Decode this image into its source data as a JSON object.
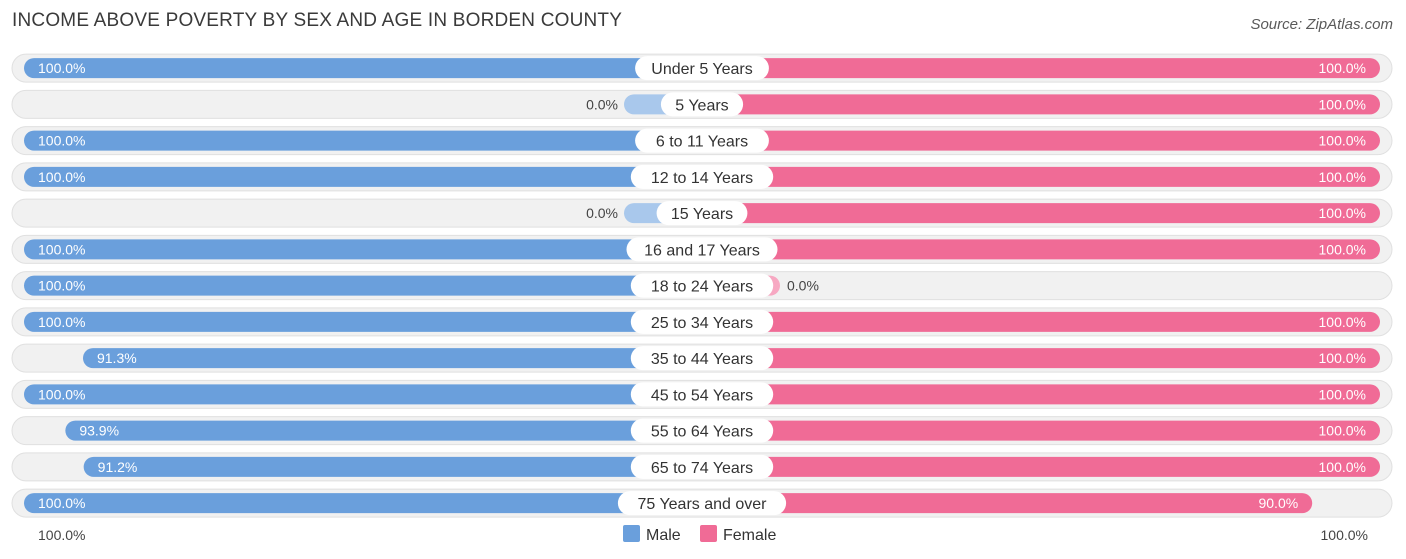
{
  "chart_data": {
    "type": "bar",
    "orientation": "horizontal-diverging",
    "title": "INCOME ABOVE POVERTY BY SEX AND AGE IN BORDEN COUNTY",
    "source": "Source: ZipAtlas.com",
    "categories": [
      "Under 5 Years",
      "5 Years",
      "6 to 11 Years",
      "12 to 14 Years",
      "15 Years",
      "16 and 17 Years",
      "18 to 24 Years",
      "25 to 34 Years",
      "35 to 44 Years",
      "45 to 54 Years",
      "55 to 64 Years",
      "65 to 74 Years",
      "75 Years and over"
    ],
    "series": [
      {
        "name": "Male",
        "color": "#6a9fdc",
        "color_zero": "#a9c8ec",
        "values": [
          100.0,
          0.0,
          100.0,
          100.0,
          0.0,
          100.0,
          100.0,
          100.0,
          91.3,
          100.0,
          93.9,
          91.2,
          100.0
        ],
        "labels": [
          "100.0%",
          "0.0%",
          "100.0%",
          "100.0%",
          "0.0%",
          "100.0%",
          "100.0%",
          "100.0%",
          "91.3%",
          "100.0%",
          "93.9%",
          "91.2%",
          "100.0%"
        ]
      },
      {
        "name": "Female",
        "color": "#f06b96",
        "color_zero": "#f7a8c2",
        "values": [
          100.0,
          100.0,
          100.0,
          100.0,
          100.0,
          100.0,
          0.0,
          100.0,
          100.0,
          100.0,
          100.0,
          100.0,
          90.0
        ],
        "labels": [
          "100.0%",
          "100.0%",
          "100.0%",
          "100.0%",
          "100.0%",
          "100.0%",
          "0.0%",
          "100.0%",
          "100.0%",
          "100.0%",
          "100.0%",
          "100.0%",
          "90.0%"
        ]
      }
    ],
    "xlim": [
      -100,
      100
    ],
    "axis_left_label": "100.0%",
    "axis_right_label": "100.0%",
    "legend": {
      "position": "bottom-center",
      "entries": [
        "Male",
        "Female"
      ]
    }
  }
}
